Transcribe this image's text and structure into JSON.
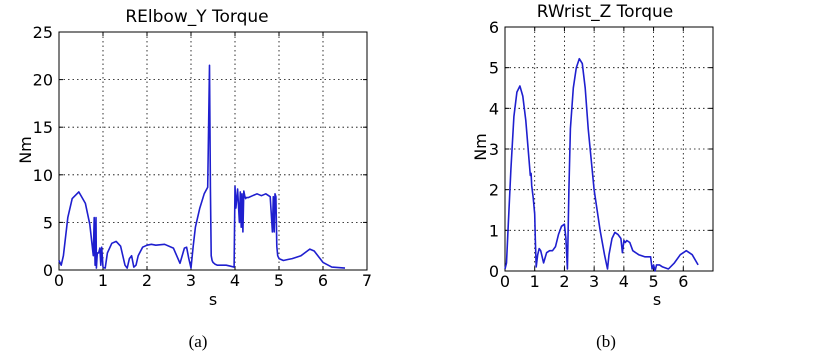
{
  "chart_data": [
    {
      "type": "line",
      "title": "RElbow_Y Torque",
      "xlabel": "s",
      "ylabel": "Nm",
      "xlim": [
        0,
        7
      ],
      "ylim": [
        0,
        25
      ],
      "xticks": [
        "0",
        "1",
        "2",
        "3",
        "4",
        "5",
        "6",
        "7"
      ],
      "yticks": [
        "0",
        "5",
        "10",
        "15",
        "20",
        "25"
      ],
      "grid": true,
      "caption": "(a)",
      "color": "#1f1fcf",
      "series": [
        {
          "x": [
            0,
            0.05,
            0.1,
            0.2,
            0.3,
            0.45,
            0.6,
            0.7,
            0.78,
            0.8,
            0.82,
            0.84,
            0.85,
            0.87,
            0.9,
            0.93,
            0.95,
            0.97,
            1.0,
            1.05,
            1.1,
            1.2,
            1.3,
            1.4,
            1.5,
            1.55,
            1.6,
            1.65,
            1.7,
            1.75,
            1.8,
            1.9,
            2.0,
            2.1,
            2.2,
            2.4,
            2.6,
            2.75,
            2.85,
            2.9,
            2.95,
            3.0,
            3.05,
            3.1,
            3.2,
            3.3,
            3.38,
            3.42,
            3.44,
            3.46,
            3.48,
            3.5,
            3.55,
            3.6,
            3.7,
            3.8,
            3.9,
            3.98,
            4.0,
            4.02,
            4.06,
            4.1,
            4.12,
            4.14,
            4.16,
            4.18,
            4.2,
            4.22,
            4.24,
            4.26,
            4.3,
            4.4,
            4.5,
            4.6,
            4.7,
            4.8,
            4.85,
            4.87,
            4.89,
            4.91,
            4.93,
            4.95,
            4.97,
            5.0,
            5.1,
            5.2,
            5.3,
            5.5,
            5.7,
            5.8,
            6.0,
            6.2,
            6.5
          ],
          "y": [
            1.0,
            0.5,
            1.5,
            5.5,
            7.5,
            8.2,
            7.0,
            4.8,
            1.5,
            5.5,
            0.5,
            5.5,
            0.2,
            1.8,
            1.8,
            2.3,
            0.5,
            2.4,
            0.3,
            0.2,
            1.8,
            2.8,
            3.0,
            2.5,
            0.5,
            0.2,
            1.2,
            1.5,
            0.3,
            0.5,
            1.5,
            2.4,
            2.6,
            2.7,
            2.6,
            2.7,
            2.3,
            0.7,
            2.3,
            2.4,
            1.2,
            0.2,
            2.5,
            4.5,
            6.5,
            8.0,
            8.7,
            21.5,
            8.7,
            1.5,
            1.0,
            0.8,
            0.6,
            0.5,
            0.5,
            0.5,
            0.4,
            0.3,
            8.8,
            6.5,
            8.5,
            5.0,
            8.2,
            4.5,
            8.0,
            4.0,
            8.3,
            7.8,
            7.5,
            7.6,
            7.6,
            7.8,
            8.0,
            7.8,
            8.0,
            7.7,
            4.0,
            7.7,
            4.0,
            8.0,
            7.7,
            2.5,
            1.5,
            1.2,
            1.0,
            1.1,
            1.2,
            1.5,
            2.2,
            2.0,
            0.8,
            0.3,
            0.2
          ]
        }
      ]
    },
    {
      "type": "line",
      "title": "RWrist_Z Torque",
      "xlabel": "s",
      "ylabel": "Nm",
      "xlim": [
        0,
        7
      ],
      "ylim": [
        0,
        6
      ],
      "xticks": [
        "0",
        "1",
        "2",
        "3",
        "4",
        "5",
        "6"
      ],
      "yticks": [
        "0",
        "1",
        "2",
        "3",
        "4",
        "5",
        "6"
      ],
      "grid": true,
      "caption": "(b)",
      "color": "#1f1fcf",
      "series": [
        {
          "x": [
            0,
            0.05,
            0.1,
            0.2,
            0.3,
            0.4,
            0.5,
            0.6,
            0.7,
            0.8,
            0.85,
            0.88,
            0.9,
            0.95,
            1.0,
            1.02,
            1.05,
            1.1,
            1.15,
            1.2,
            1.3,
            1.4,
            1.5,
            1.6,
            1.7,
            1.8,
            1.9,
            2.0,
            2.05,
            2.1,
            2.12,
            2.15,
            2.2,
            2.3,
            2.4,
            2.5,
            2.6,
            2.7,
            2.8,
            3.0,
            3.2,
            3.35,
            3.45,
            3.5,
            3.6,
            3.7,
            3.8,
            3.9,
            3.95,
            4.0,
            4.05,
            4.1,
            4.2,
            4.3,
            4.5,
            4.7,
            4.8,
            4.9,
            4.95,
            5.0,
            5.05,
            5.1,
            5.2,
            5.3,
            5.5,
            5.7,
            5.9,
            6.1,
            6.3,
            6.5
          ],
          "y": [
            0.05,
            0.2,
            1.0,
            2.5,
            3.8,
            4.4,
            4.55,
            4.3,
            3.7,
            2.8,
            2.35,
            2.4,
            2.1,
            1.8,
            1.4,
            0.8,
            0.1,
            0.4,
            0.55,
            0.5,
            0.2,
            0.45,
            0.5,
            0.5,
            0.6,
            0.9,
            1.1,
            1.15,
            0.8,
            0.05,
            0.8,
            2.0,
            3.5,
            4.5,
            5.0,
            5.22,
            5.1,
            4.5,
            3.5,
            2.0,
            1.0,
            0.4,
            0.05,
            0.4,
            0.8,
            0.95,
            0.9,
            0.8,
            0.45,
            0.75,
            0.7,
            0.75,
            0.7,
            0.5,
            0.4,
            0.35,
            0.35,
            0.35,
            0.05,
            0.15,
            0.0,
            0.15,
            0.15,
            0.1,
            0.05,
            0.2,
            0.4,
            0.5,
            0.4,
            0.15
          ]
        }
      ]
    }
  ]
}
